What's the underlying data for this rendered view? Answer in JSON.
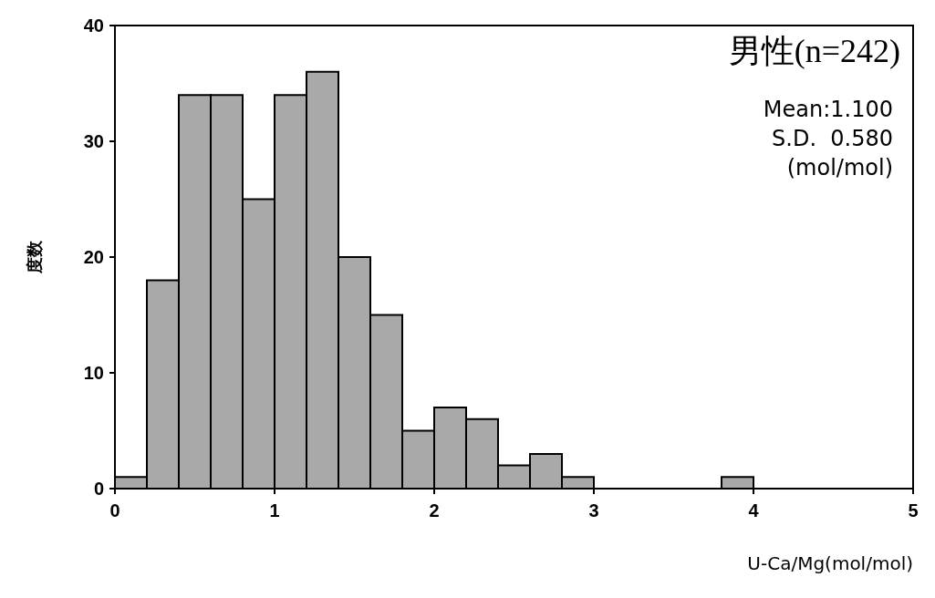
{
  "chart_data": {
    "type": "histogram",
    "xlabel": "U-Ca/Mg(mol/mol)",
    "ylabel": "度数",
    "annotations": [
      "男性(n=242)",
      "Mean:1.100",
      "S.D.  0.580",
      "(mol/mol)"
    ],
    "bins": [
      0,
      0.2,
      0.4,
      0.6,
      0.8,
      1.0,
      1.2,
      1.4,
      1.6,
      1.8,
      2.0,
      2.2,
      2.4,
      2.6,
      2.8,
      3.0,
      3.2,
      3.4,
      3.6,
      3.8,
      4.0
    ],
    "values": [
      1,
      18,
      34,
      34,
      25,
      34,
      36,
      20,
      15,
      5,
      7,
      6,
      2,
      3,
      1,
      0,
      0,
      0,
      0,
      1
    ],
    "color": "#a9a9a9",
    "xlim": [
      0,
      5
    ],
    "xticks": [
      0,
      1,
      2,
      3,
      4,
      5
    ],
    "ylim": [
      0,
      40
    ],
    "yticks": [
      0,
      10,
      20,
      30,
      40
    ],
    "grid": false
  }
}
